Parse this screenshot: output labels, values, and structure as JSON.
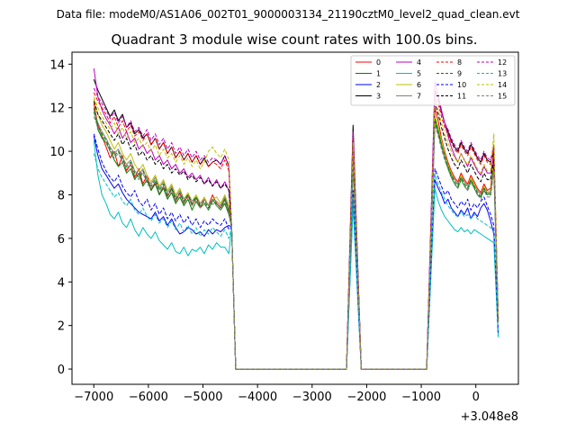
{
  "chart_data": {
    "type": "line",
    "suptitle": "Data file: modeM0/AS1A06_002T01_9000003134_21190cztM0_level2_quad_clean.evt",
    "title": "Quadrant 3 module wise count rates with 100.0s bins.",
    "xlabel": "",
    "ylabel": "",
    "x_offset_label": "+3.048e8",
    "xlim": [
      -7400,
      780
    ],
    "ylim": [
      -0.7,
      14.55
    ],
    "xticks": [
      -7000,
      -6000,
      -5000,
      -4000,
      -3000,
      -2000,
      -1000,
      0
    ],
    "xtick_labels": [
      "−7000",
      "−6000",
      "−5000",
      "−4000",
      "−3000",
      "−2000",
      "−1000",
      "0"
    ],
    "yticks": [
      0,
      2,
      4,
      6,
      8,
      10,
      12,
      14
    ],
    "ytick_labels": [
      "0",
      "2",
      "4",
      "6",
      "8",
      "10",
      "12",
      "14"
    ],
    "legend_position": "top-right",
    "colors": [
      "#ff0000",
      "#008000",
      "#0000ff",
      "#000000",
      "#bf00bf",
      "#00bfbf",
      "#bfbf00",
      "#808080",
      "#ff0000",
      "#008000",
      "#0000ff",
      "#000000",
      "#bf00bf",
      "#00bfbf",
      "#bfbf00",
      "#808080"
    ],
    "series": [
      {
        "name": "0",
        "style": "solid",
        "seg1": [
          12.2,
          11.2,
          10.7,
          10.2,
          9.7,
          10.0,
          9.3,
          9.8,
          9.1,
          9.4,
          8.8,
          9.2,
          8.5,
          8.9,
          8.2,
          8.6,
          8.0,
          8.4,
          7.9,
          8.3,
          7.7,
          8.1,
          7.6,
          8.0,
          7.5,
          7.9,
          7.4,
          7.8,
          7.5,
          8.0,
          7.6,
          7.4,
          7.8,
          7.2
        ],
        "peak": 10.6,
        "seg3": [
          12.0,
          11.4,
          10.6,
          10.0,
          9.5,
          9.1,
          8.8,
          8.6,
          9.0,
          8.7,
          8.5,
          8.9,
          8.6,
          8.3,
          8.1,
          8.5,
          8.2,
          8.3,
          10.2
        ]
      },
      {
        "name": "1",
        "style": "solid",
        "seg1": [
          12.0,
          11.0,
          10.6,
          10.4,
          10.0,
          9.6,
          9.3,
          9.5,
          9.0,
          9.2,
          8.7,
          9.0,
          8.4,
          8.7,
          8.2,
          8.5,
          8.0,
          8.3,
          7.8,
          8.1,
          7.6,
          7.9,
          7.5,
          7.8,
          7.3,
          7.7,
          7.4,
          7.6,
          7.3,
          7.8,
          7.5,
          7.3,
          7.6,
          7.1
        ],
        "peak": 9.3,
        "seg3": [
          11.5,
          11.0,
          10.3,
          9.7,
          9.2,
          8.8,
          8.5,
          8.3,
          8.7,
          8.4,
          8.2,
          8.6,
          8.3,
          8.0,
          7.9,
          8.2,
          8.0,
          8.1,
          9.4
        ]
      },
      {
        "name": "2",
        "style": "solid",
        "seg1": [
          10.7,
          9.8,
          9.2,
          8.9,
          8.6,
          8.3,
          8.5,
          8.1,
          7.8,
          7.6,
          7.4,
          7.2,
          7.1,
          7.0,
          6.9,
          7.2,
          6.8,
          7.0,
          6.6,
          6.9,
          6.5,
          6.2,
          6.3,
          6.5,
          6.4,
          6.2,
          6.3,
          6.1,
          6.4,
          6.2,
          6.4,
          6.3,
          6.5,
          6.6
        ],
        "peak": 7.8,
        "seg3": [
          8.7,
          8.3,
          8.0,
          7.6,
          7.8,
          7.4,
          7.2,
          7.0,
          7.3,
          7.1,
          7.4,
          6.9,
          7.2,
          7.0,
          7.4,
          7.6,
          7.3,
          6.8,
          6.2
        ]
      },
      {
        "name": "3",
        "style": "solid",
        "seg1": [
          13.3,
          12.8,
          12.4,
          12.0,
          11.6,
          11.9,
          11.4,
          11.7,
          11.1,
          11.3,
          10.8,
          11.0,
          10.6,
          10.8,
          10.3,
          10.6,
          10.1,
          10.4,
          9.9,
          10.2,
          9.7,
          10.0,
          9.6,
          9.9,
          9.5,
          9.8,
          9.4,
          9.7,
          9.3,
          9.5,
          9.6,
          9.4,
          9.8,
          9.3
        ],
        "peak": 11.2,
        "seg3": [
          12.8,
          12.4,
          11.8,
          11.3,
          10.9,
          10.5,
          10.2,
          10.0,
          10.4,
          10.1,
          9.9,
          10.3,
          10.0,
          9.7,
          9.5,
          9.9,
          9.6,
          9.5,
          10.0
        ]
      },
      {
        "name": "4",
        "style": "solid",
        "seg1": [
          13.8,
          12.5,
          11.9,
          11.5,
          11.2,
          10.8,
          11.1,
          10.6,
          10.9,
          10.4,
          10.6,
          10.1,
          10.3,
          9.9,
          10.1,
          9.6,
          9.8,
          9.4,
          9.6,
          9.2,
          9.4,
          9.0,
          9.2,
          8.8,
          9.0,
          8.7,
          8.9,
          8.5,
          8.8,
          8.4,
          8.7,
          8.3,
          8.6,
          8.2
        ],
        "peak": 10.1,
        "seg3": [
          13.2,
          12.6,
          11.9,
          11.3,
          10.7,
          10.2,
          9.8,
          9.5,
          9.9,
          9.6,
          9.3,
          9.7,
          9.4,
          9.1,
          8.9,
          9.3,
          9.0,
          9.0,
          9.8
        ]
      },
      {
        "name": "5",
        "style": "solid",
        "seg1": [
          10.5,
          8.9,
          8.0,
          7.6,
          7.1,
          6.9,
          7.2,
          6.7,
          6.5,
          6.9,
          6.4,
          6.1,
          6.5,
          6.2,
          6.0,
          6.3,
          5.9,
          5.7,
          5.5,
          5.8,
          5.4,
          5.3,
          5.6,
          5.2,
          5.5,
          5.4,
          5.6,
          5.3,
          5.7,
          5.5,
          5.8,
          5.6,
          5.6,
          5.3
        ],
        "peak": 7.5,
        "seg3": [
          8.3,
          7.7,
          7.3,
          7.0,
          6.8,
          6.6,
          6.4,
          6.3,
          6.5,
          6.3,
          6.4,
          6.2,
          6.4,
          6.3,
          6.2,
          6.1,
          6.0,
          5.9,
          5.8
        ]
      },
      {
        "name": "6",
        "style": "solid",
        "seg1": [
          12.4,
          11.7,
          11.2,
          10.9,
          10.5,
          10.1,
          10.4,
          9.9,
          9.6,
          9.9,
          9.4,
          9.1,
          9.4,
          8.9,
          8.6,
          8.9,
          8.4,
          8.7,
          8.2,
          8.5,
          8.0,
          8.3,
          7.8,
          8.1,
          7.7,
          8.0,
          7.6,
          7.9,
          7.5,
          7.8,
          7.9,
          7.6,
          8.0,
          7.5
        ],
        "peak": 10.0,
        "seg3": [
          11.7,
          11.1,
          10.5,
          9.9,
          9.4,
          9.0,
          8.7,
          8.5,
          8.9,
          8.6,
          8.4,
          8.8,
          8.5,
          8.2,
          8.0,
          8.4,
          8.1,
          8.2,
          9.6
        ]
      },
      {
        "name": "7",
        "style": "solid",
        "seg1": [
          11.9,
          11.3,
          10.9,
          10.6,
          10.2,
          9.9,
          10.1,
          9.7,
          9.4,
          9.6,
          9.1,
          8.9,
          9.2,
          8.7,
          8.5,
          8.8,
          8.3,
          8.6,
          8.1,
          8.4,
          7.9,
          8.2,
          7.8,
          8.0,
          7.7,
          7.9,
          7.6,
          7.8,
          7.5,
          7.8,
          7.7,
          7.5,
          7.9,
          7.4
        ],
        "peak": 9.5,
        "seg3": [
          11.3,
          10.8,
          10.2,
          9.7,
          9.3,
          8.9,
          8.7,
          8.5,
          8.8,
          8.6,
          8.4,
          8.7,
          8.4,
          8.2,
          8.0,
          8.3,
          8.1,
          8.1,
          9.2
        ]
      },
      {
        "name": "8",
        "style": "dashed",
        "seg1": [
          12.7,
          12.3,
          12.0,
          11.7,
          11.3,
          11.6,
          11.1,
          11.4,
          10.9,
          11.2,
          10.7,
          10.9,
          10.5,
          10.8,
          10.3,
          10.6,
          10.1,
          10.4,
          9.9,
          10.2,
          9.7,
          10.0,
          9.6,
          9.9,
          9.5,
          9.8,
          9.4,
          9.6,
          9.3,
          9.5,
          9.4,
          9.2,
          9.6,
          9.1
        ],
        "peak": 10.8,
        "seg3": [
          12.5,
          12.2,
          11.6,
          11.1,
          10.8,
          10.4,
          10.1,
          9.9,
          10.3,
          10.0,
          9.8,
          10.2,
          9.9,
          9.6,
          9.4,
          9.8,
          9.5,
          9.4,
          10.2
        ]
      },
      {
        "name": "9",
        "style": "dashed",
        "seg1": [
          11.8,
          11.2,
          10.8,
          10.5,
          10.1,
          9.8,
          10.0,
          9.6,
          9.3,
          9.5,
          9.0,
          8.8,
          9.1,
          8.6,
          8.4,
          8.7,
          8.2,
          8.5,
          8.0,
          8.3,
          7.8,
          8.1,
          7.7,
          8.0,
          7.6,
          7.9,
          7.5,
          7.7,
          7.4,
          7.7,
          7.6,
          7.4,
          7.8,
          7.3
        ],
        "peak": 9.6,
        "seg3": [
          11.4,
          10.9,
          10.3,
          9.8,
          9.3,
          8.9,
          8.6,
          8.4,
          8.8,
          8.5,
          8.3,
          8.7,
          8.4,
          8.1,
          7.9,
          8.3,
          8.0,
          8.0,
          9.3
        ]
      },
      {
        "name": "10",
        "style": "dashed",
        "seg1": [
          10.8,
          10.1,
          9.5,
          9.1,
          8.8,
          8.6,
          8.9,
          8.4,
          8.1,
          7.9,
          8.2,
          7.7,
          7.5,
          7.8,
          7.3,
          7.6,
          7.1,
          7.4,
          6.9,
          7.2,
          6.8,
          7.1,
          6.7,
          7.0,
          6.6,
          6.9,
          6.5,
          6.8,
          6.6,
          6.9,
          6.7,
          6.6,
          6.9,
          6.4
        ],
        "peak": 8.2,
        "seg3": [
          9.2,
          8.8,
          8.4,
          8.0,
          8.2,
          7.8,
          7.6,
          7.4,
          7.7,
          7.5,
          7.8,
          7.3,
          7.6,
          7.4,
          7.7,
          7.9,
          7.5,
          7.1,
          6.6
        ]
      },
      {
        "name": "11",
        "style": "dashed",
        "seg1": [
          12.3,
          11.7,
          11.4,
          11.1,
          10.8,
          10.5,
          10.8,
          10.3,
          10.6,
          10.1,
          10.3,
          9.8,
          10.0,
          9.6,
          9.8,
          9.4,
          9.6,
          9.2,
          9.4,
          9.0,
          9.2,
          8.9,
          9.1,
          8.7,
          8.9,
          8.6,
          8.8,
          8.5,
          8.7,
          8.4,
          8.6,
          8.3,
          8.5,
          8.2
        ],
        "peak": 10.3,
        "seg3": [
          12.2,
          11.7,
          11.1,
          10.6,
          10.1,
          9.7,
          9.4,
          9.2,
          9.6,
          9.3,
          9.0,
          9.4,
          9.1,
          8.8,
          8.6,
          9.0,
          8.7,
          8.7,
          9.6
        ]
      },
      {
        "name": "12",
        "style": "dashed",
        "seg1": [
          12.9,
          12.5,
          12.2,
          11.9,
          11.5,
          11.8,
          11.3,
          11.6,
          11.1,
          11.4,
          10.9,
          11.1,
          10.7,
          11.0,
          10.5,
          10.8,
          10.3,
          10.6,
          10.1,
          10.4,
          9.9,
          10.2,
          9.8,
          10.1,
          9.7,
          10.0,
          9.6,
          9.8,
          9.5,
          9.7,
          9.6,
          9.4,
          9.8,
          9.3
        ],
        "peak": 10.9,
        "seg3": [
          12.7,
          12.4,
          11.8,
          11.3,
          11.0,
          10.6,
          10.3,
          10.1,
          10.5,
          10.2,
          10.0,
          10.4,
          10.1,
          9.8,
          9.6,
          10.0,
          9.7,
          9.6,
          10.3
        ]
      },
      {
        "name": "13",
        "style": "dashed",
        "seg1": [
          9.9,
          9.2,
          8.8,
          8.5,
          8.2,
          7.9,
          8.1,
          7.7,
          7.5,
          7.8,
          7.3,
          7.1,
          7.4,
          7.0,
          6.8,
          7.1,
          6.7,
          6.9,
          6.5,
          6.8,
          6.4,
          6.7,
          6.3,
          6.6,
          6.2,
          6.5,
          6.1,
          6.4,
          6.2,
          6.5,
          6.3,
          6.1,
          6.4,
          6.0
        ],
        "peak": 7.9,
        "seg3": [
          9.0,
          8.5,
          8.1,
          7.8,
          7.5,
          7.3,
          7.1,
          7.0,
          7.2,
          7.0,
          7.1,
          6.9,
          7.1,
          6.9,
          6.8,
          6.7,
          6.6,
          6.5,
          6.3
        ]
      },
      {
        "name": "14",
        "style": "dashed",
        "seg1": [
          12.5,
          12.0,
          11.6,
          11.3,
          11.0,
          11.3,
          10.8,
          11.1,
          10.6,
          10.9,
          10.4,
          10.6,
          10.2,
          10.4,
          10.0,
          10.3,
          9.8,
          10.1,
          9.7,
          9.9,
          9.5,
          9.8,
          9.4,
          9.7,
          9.3,
          9.6,
          9.2,
          9.5,
          10.0,
          10.2,
          9.9,
          9.7,
          10.1,
          9.6
        ],
        "peak": 10.4,
        "seg3": [
          12.3,
          11.9,
          11.3,
          10.8,
          10.4,
          10.0,
          9.7,
          9.5,
          9.9,
          9.6,
          9.4,
          9.8,
          9.5,
          9.2,
          9.0,
          9.4,
          9.1,
          9.1,
          10.8
        ]
      },
      {
        "name": "15",
        "style": "dashed",
        "seg1": [
          11.6,
          11.1,
          10.7,
          10.4,
          10.0,
          9.7,
          9.9,
          9.5,
          9.2,
          9.4,
          8.9,
          8.7,
          9.0,
          8.5,
          8.3,
          8.6,
          8.1,
          8.4,
          7.9,
          8.2,
          7.7,
          8.0,
          7.6,
          7.9,
          7.5,
          7.8,
          7.4,
          7.6,
          7.3,
          7.6,
          7.5,
          7.3,
          7.7,
          7.2
        ],
        "peak": 9.4,
        "seg3": [
          11.2,
          10.7,
          10.1,
          9.6,
          9.2,
          8.8,
          8.5,
          8.3,
          8.7,
          8.4,
          8.2,
          8.6,
          8.3,
          8.0,
          7.8,
          8.2,
          7.9,
          7.9,
          9.1
        ]
      }
    ],
    "segment_x": {
      "seg1_start": -7000,
      "seg1_step": 75,
      "seg1_end_value": 6.5,
      "seg1_end_x": -4475,
      "gap1": [
        -4400,
        -2370
      ],
      "peak_x": -2250,
      "gap2": [
        -2100,
        -900
      ],
      "seg3_start": -750,
      "seg3_step": 60,
      "seg3_end_x": 410
    }
  }
}
